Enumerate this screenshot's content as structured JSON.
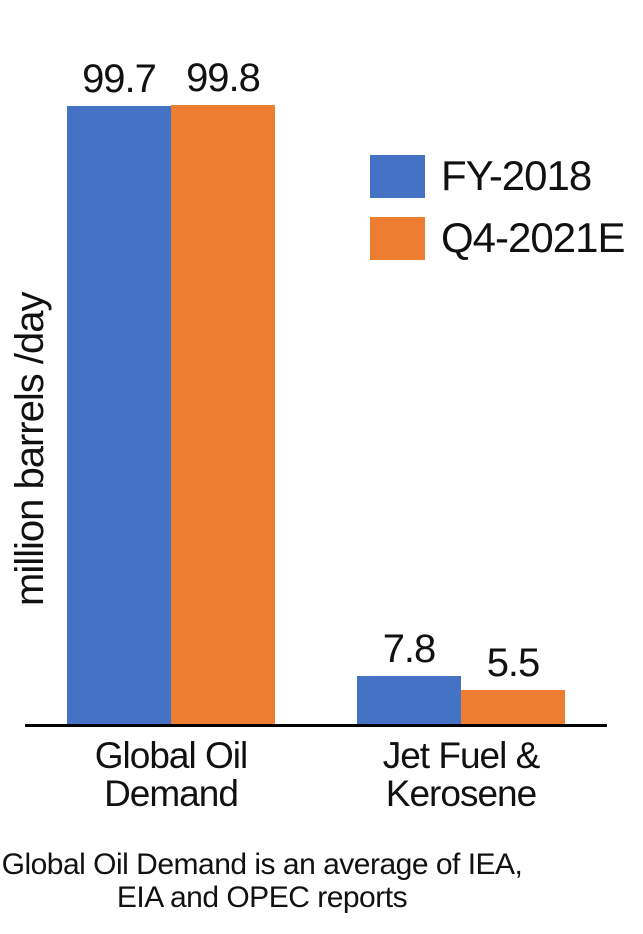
{
  "chart_data": {
    "type": "bar",
    "title": "",
    "ylabel": "million barrels /day",
    "xlabel": "",
    "categories": [
      "Global Oil Demand",
      "Jet Fuel & Kerosene"
    ],
    "category_label_lines": [
      [
        "Global Oil",
        "Demand"
      ],
      [
        "Jet Fuel &",
        "Kerosene"
      ]
    ],
    "series": [
      {
        "name": "FY-2018",
        "color": "#4472C4",
        "values": [
          99.7,
          7.8
        ],
        "value_labels": [
          "99.7",
          "7.8"
        ]
      },
      {
        "name": "Q4-2021E",
        "color": "#ED7D31",
        "values": [
          99.8,
          5.5
        ],
        "value_labels": [
          "99.8",
          "5.5"
        ]
      }
    ],
    "ylim": [
      0,
      110
    ],
    "grid": false,
    "y_axis_ticks_shown": false,
    "legend_position": "upper-right",
    "axis_color": "#000000",
    "text_color": "#111111",
    "footnote_lines": [
      "Global Oil Demand is an average of IEA,",
      "EIA and OPEC reports"
    ]
  }
}
